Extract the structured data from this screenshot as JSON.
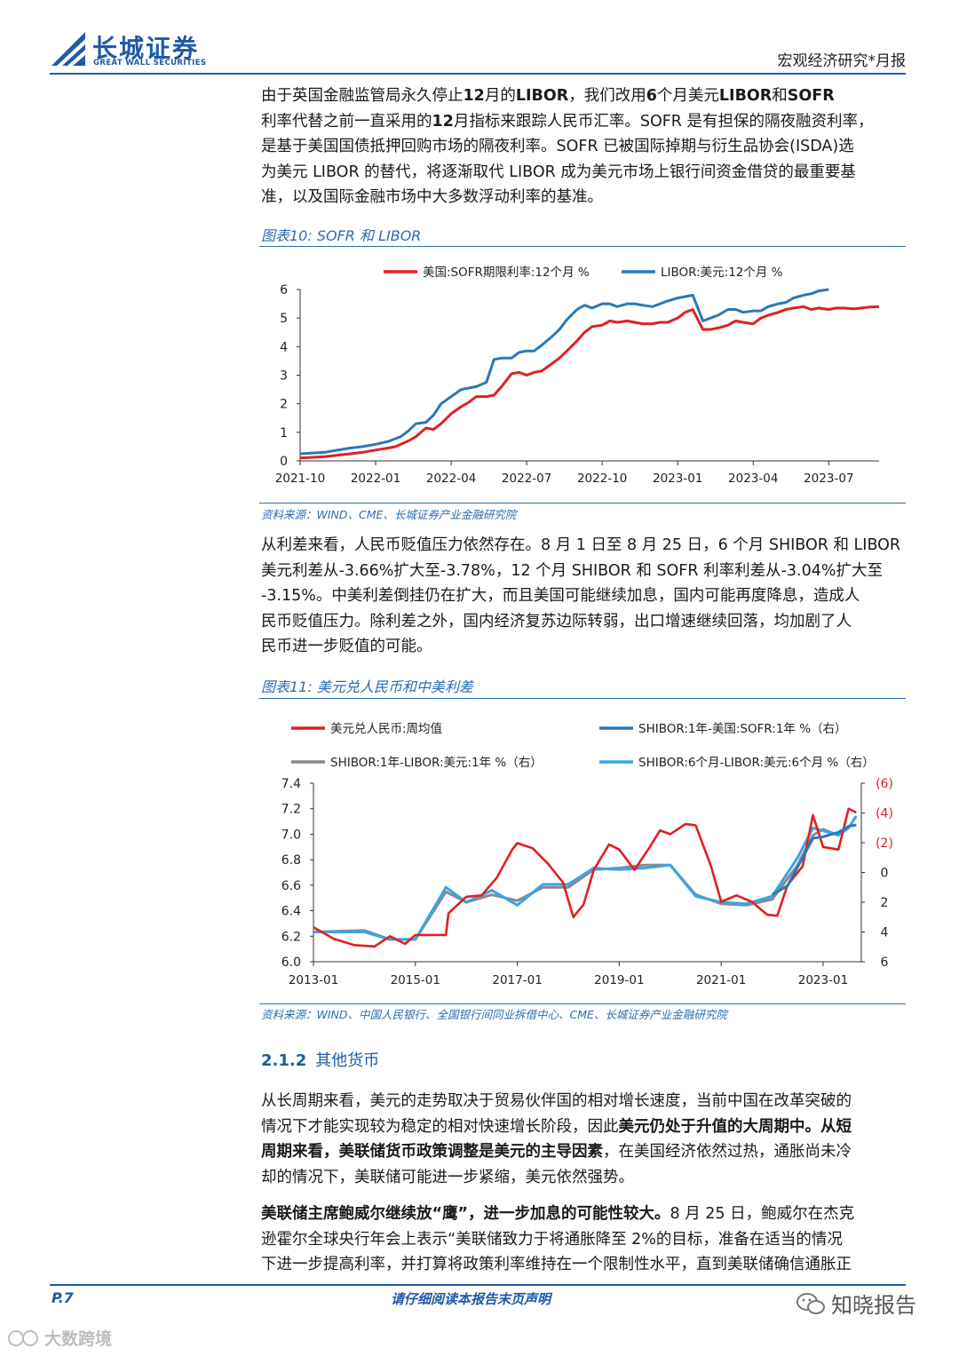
{
  "header": {
    "logo_cn": "长城证券",
    "logo_en": "GREAT WALL SECURITIES",
    "report_type": "宏观经济研究*月报"
  },
  "p1": {
    "s1": "由于英国金融监管局永久停止",
    "s2": "12",
    "s3": "月的",
    "s4": "LIBOR",
    "s5": "，我们改用",
    "s6": "6",
    "s7": "个月美元",
    "s8": "LIBOR",
    "s9": "和",
    "s10": "SOFR",
    "l2": "利率代替之前一直采用的",
    "l2b": "12",
    "l2c": "月指标来跟踪人民币汇率。SOFR 是有担保的隔夜融资利率，",
    "l3": "是基于美国国债抵押回购市场的隔夜利率。SOFR 已被国际掉期与衍生品协会(ISDA)选",
    "l4": "为美元 LIBOR 的替代，将逐渐取代 LIBOR 成为美元市场上银行间资金借贷的最重要基",
    "l5": "准，以及国际金融市场中大多数浮动利率的基准。"
  },
  "fig10": {
    "title": "图表10: SOFR 和 LIBOR",
    "source": "资料来源：WIND、CME、长城证券产业金融研究院"
  },
  "p2": {
    "l1": "从利差来看，人民币贬值压力依然存在。8 月 1 日至 8 月 25 日，6 个月 SHIBOR 和 LIBOR",
    "l2": "美元利差从-3.66%扩大至-3.78%，12 个月 SHIBOR 和 SOFR 利率利差从-3.04%扩大至",
    "l3": "-3.15%。中美利差倒挂仍在扩大，而且美国可能继续加息，国内可能再度降息，造成人",
    "l4": "民币贬值压力。除利差之外，国内经济复苏边际转弱，出口增速继续回落，均加剧了人",
    "l5": "民币进一步贬值的可能。"
  },
  "fig11": {
    "title": "图表11: 美元兑人民币和中美利差",
    "source": "资料来源：WIND、中国人民银行、全国银行间同业拆借中心、CME、长城证券产业金融研究院"
  },
  "section": {
    "num": "2.1.2",
    "title": "其他货币"
  },
  "p3": {
    "l1": "从长周期来看，美元的走势取决于贸易伙伴国的相对增长速度，当前中国在改革突破的",
    "l2a": "情况下才能实现较为稳定的相对快速增长阶段，因此",
    "l2b": "美元仍处于升值的大周期中。从短",
    "l3a": "周期来看，美联储货币政策调整是美元的主导因素",
    "l3b": "，在美国经济依然过热，通胀尚未冷",
    "l4": "却的情况下，美联储可能进一步紧缩，美元依然强势。"
  },
  "p4": {
    "l1a": "美联储主席鲍威尔继续放“鹰”，进一步加息的可能性较大。",
    "l1b": "8 月 25 日，鲍威尔在杰克",
    "l2": "逊霍尔全球央行年会上表示“美联储致力于将通胀降至 2%的目标，准备在适当的情况",
    "l3": "下进一步提高利率，并打算将政策利率维持在一个限制性水平，直到美联储确信通胀正"
  },
  "footer": {
    "page": "P.7",
    "notice": "请仔细阅读本报告末页声明",
    "wechat": "知晓报告",
    "watermark": "大数跨境"
  },
  "colors": {
    "red": "#e02020",
    "blue": "#2a78b8",
    "gray": "#8a8a8a",
    "lightblue": "#3ba3e6",
    "accent": "#2e6bb0"
  },
  "chart_data": [
    {
      "type": "line",
      "title": "SOFR 和 LIBOR",
      "categories": [
        "2021-10",
        "2022-01",
        "2022-04",
        "2022-07",
        "2022-10",
        "2023-01",
        "2023-04",
        "2023-07"
      ],
      "x_ticks": [
        "2021-10",
        "2022-01",
        "2022-04",
        "2022-07",
        "2022-10",
        "2023-01",
        "2023-04",
        "2023-07"
      ],
      "y_ticks": [
        "0",
        "1",
        "2",
        "3",
        "4",
        "5",
        "6"
      ],
      "ylim": [
        0,
        6
      ],
      "series": [
        {
          "name": "美国:SOFR期限利率:12个月 %",
          "color": "#e02020",
          "x": [
            0,
            1,
            1.5,
            2,
            2.5,
            3,
            3.5,
            3.8,
            4,
            4.3,
            4.6,
            5,
            5.3,
            5.6,
            6,
            6.4,
            6.7,
            7,
            7.4,
            7.7,
            8,
            8.4,
            8.7,
            9,
            9.3,
            9.6,
            10,
            10.3,
            10.6,
            11,
            11.3,
            11.6,
            12,
            12.3,
            12.6,
            13,
            13.3,
            13.6,
            14,
            14.3,
            14.6,
            15,
            15.3,
            15.6,
            16,
            16.3,
            16.6,
            17,
            17.3,
            17.6,
            18,
            18.3,
            18.6,
            19,
            19.3,
            19.6,
            20,
            20.3,
            20.6,
            21,
            21.3,
            21.6,
            22,
            22.3,
            22.6,
            23
          ],
          "values": [
            0.1,
            0.15,
            0.2,
            0.25,
            0.3,
            0.38,
            0.45,
            0.5,
            0.58,
            0.7,
            0.85,
            1.15,
            1.1,
            1.3,
            1.65,
            1.9,
            2.05,
            2.25,
            2.25,
            2.3,
            2.6,
            3.05,
            3.1,
            3.0,
            3.1,
            3.15,
            3.4,
            3.6,
            3.85,
            4.2,
            4.5,
            4.7,
            4.75,
            4.9,
            4.85,
            4.9,
            4.85,
            4.8,
            4.8,
            4.85,
            4.85,
            5.0,
            5.2,
            5.3,
            4.6,
            4.6,
            4.65,
            4.75,
            4.9,
            4.85,
            4.8,
            5.0,
            5.1,
            5.2,
            5.3,
            5.35,
            5.4,
            5.3,
            5.35,
            5.3,
            5.35,
            5.35,
            5.32,
            5.35,
            5.38,
            5.4
          ]
        },
        {
          "name": "LIBOR:美元:12个月 %",
          "color": "#2a78b8",
          "x": [
            0,
            1,
            1.5,
            2,
            2.5,
            3,
            3.5,
            3.8,
            4,
            4.3,
            4.6,
            5,
            5.3,
            5.6,
            6,
            6.4,
            6.7,
            7,
            7.4,
            7.7,
            8,
            8.4,
            8.7,
            9,
            9.3,
            9.6,
            10,
            10.3,
            10.6,
            11,
            11.3,
            11.6,
            12,
            12.3,
            12.6,
            13,
            13.3,
            13.6,
            14,
            14.3,
            14.6,
            15,
            15.3,
            15.6,
            16,
            16.3,
            16.6,
            17,
            17.3,
            17.6,
            18,
            18.3,
            18.6,
            19,
            19.3,
            19.6,
            20,
            20.3,
            20.6,
            21
          ],
          "values": [
            0.25,
            0.3,
            0.38,
            0.45,
            0.5,
            0.58,
            0.68,
            0.78,
            0.85,
            1.05,
            1.3,
            1.35,
            1.6,
            2.0,
            2.25,
            2.5,
            2.55,
            2.6,
            2.75,
            3.55,
            3.6,
            3.6,
            3.8,
            3.85,
            3.85,
            4.05,
            4.35,
            4.6,
            4.95,
            5.3,
            5.45,
            5.35,
            5.5,
            5.5,
            5.4,
            5.5,
            5.5,
            5.45,
            5.4,
            5.5,
            5.6,
            5.7,
            5.75,
            5.8,
            4.9,
            5.0,
            5.1,
            5.3,
            5.3,
            5.2,
            5.25,
            5.25,
            5.4,
            5.5,
            5.55,
            5.7,
            5.8,
            5.85,
            5.95,
            6.0
          ]
        }
      ]
    },
    {
      "type": "line",
      "title": "美元兑人民币和中美利差",
      "x_ticks": [
        "2013-01",
        "2015-01",
        "2017-01",
        "2019-01",
        "2021-01",
        "2023-01"
      ],
      "y_left_ticks": [
        "6.0",
        "6.2",
        "6.4",
        "6.6",
        "6.8",
        "7.0",
        "7.2",
        "7.4"
      ],
      "y_right_ticks": [
        "(6)",
        "(4)",
        "(2)",
        "0",
        "2",
        "4",
        "6"
      ],
      "ylim_left": [
        6.0,
        7.4
      ],
      "ylim_right_inverted": [
        -6,
        6
      ],
      "series": [
        {
          "name": "美元兑人民币:周均值",
          "axis": "left",
          "color": "#e02020",
          "x": [
            2013.0,
            2013.4,
            2013.8,
            2014.2,
            2014.5,
            2014.8,
            2015.0,
            2015.3,
            2015.6,
            2015.65,
            2016.0,
            2016.3,
            2016.6,
            2016.9,
            2017.0,
            2017.3,
            2017.6,
            2017.9,
            2018.1,
            2018.3,
            2018.5,
            2018.8,
            2019.0,
            2019.3,
            2019.6,
            2019.8,
            2020.0,
            2020.3,
            2020.5,
            2020.8,
            2021.0,
            2021.3,
            2021.6,
            2021.9,
            2022.1,
            2022.3,
            2022.6,
            2022.8,
            2023.0,
            2023.3,
            2023.5,
            2023.65
          ],
          "values": [
            6.27,
            6.18,
            6.13,
            6.12,
            6.2,
            6.14,
            6.21,
            6.21,
            6.21,
            6.38,
            6.51,
            6.52,
            6.66,
            6.88,
            6.93,
            6.89,
            6.77,
            6.62,
            6.35,
            6.45,
            6.72,
            6.92,
            6.88,
            6.72,
            6.9,
            7.03,
            7.0,
            7.08,
            7.07,
            6.75,
            6.47,
            6.52,
            6.47,
            6.37,
            6.36,
            6.6,
            6.75,
            7.15,
            6.9,
            6.88,
            7.2,
            7.17
          ]
        },
        {
          "name": "SHIBOR:1年-美国:SOFR:1年 %（右）",
          "axis": "right",
          "color": "#2a78b8",
          "x": [
            2022.0,
            2022.3,
            2022.6,
            2022.8,
            2023.0,
            2023.3,
            2023.5,
            2023.65
          ],
          "values": [
            1.5,
            0.9,
            -1.0,
            -2.3,
            -2.4,
            -2.7,
            -3.1,
            -3.2
          ]
        },
        {
          "name": "SHIBOR:1年-LIBOR:美元:1年 %（右）",
          "axis": "right",
          "color": "#8a8a8a",
          "x": [
            2013.0,
            2014.0,
            2014.5,
            2015.0,
            2015.6,
            2016.0,
            2016.5,
            2017.0,
            2017.5,
            2018.0,
            2018.5,
            2019.0,
            2019.5,
            2020.0,
            2020.5,
            2021.0,
            2021.5,
            2022.0,
            2022.5,
            2022.8,
            2023.0,
            2023.3,
            2023.5
          ],
          "values": [
            4.0,
            3.9,
            4.5,
            4.5,
            1.3,
            2.0,
            1.5,
            1.9,
            1.0,
            1.0,
            -0.2,
            -0.3,
            -0.5,
            -0.5,
            1.5,
            2.1,
            2.2,
            1.8,
            -0.5,
            -2.5,
            -2.9,
            -2.5,
            -3.1
          ]
        },
        {
          "name": "SHIBOR:6个月-LIBOR:美元:6个月 %（右）",
          "axis": "right",
          "color": "#3ba3e6",
          "x": [
            2013.0,
            2014.0,
            2014.5,
            2015.0,
            2015.6,
            2016.0,
            2016.5,
            2017.0,
            2017.5,
            2018.0,
            2018.5,
            2019.0,
            2019.5,
            2020.0,
            2020.5,
            2021.0,
            2021.5,
            2022.0,
            2022.5,
            2022.8,
            2023.0,
            2023.3,
            2023.5,
            2023.65
          ],
          "values": [
            4.0,
            4.0,
            4.5,
            4.5,
            1.0,
            2.0,
            1.2,
            2.2,
            0.8,
            0.8,
            -0.3,
            -0.2,
            -0.3,
            -0.5,
            1.6,
            2.0,
            2.1,
            1.6,
            -1.0,
            -3.0,
            -2.8,
            -2.5,
            -3.0,
            -3.8
          ]
        }
      ]
    }
  ]
}
